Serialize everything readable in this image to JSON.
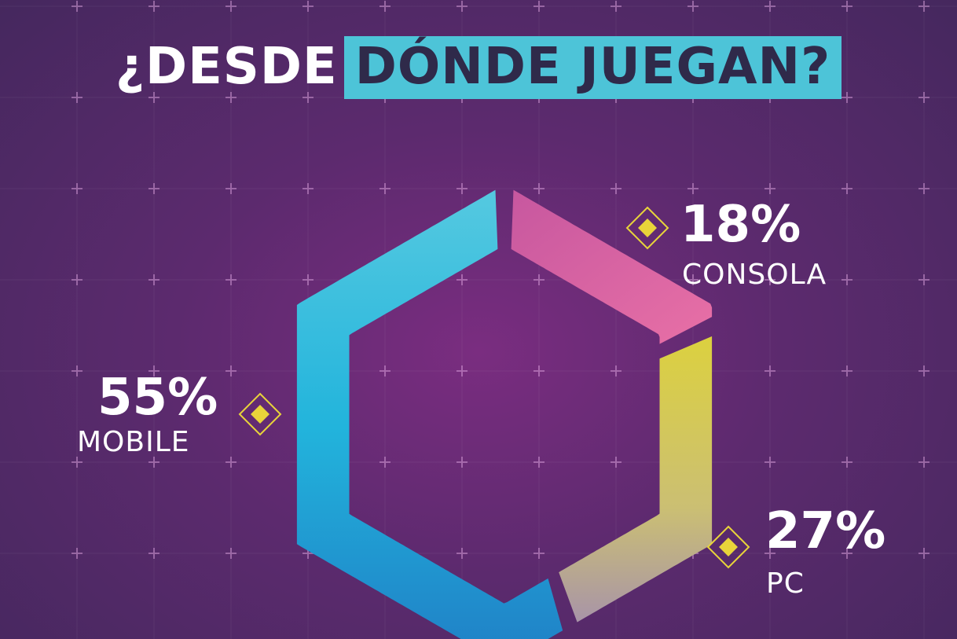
{
  "title": {
    "part1": "¿DESDE",
    "part2": "DÓNDE JUEGAN?"
  },
  "colors": {
    "mobile": "#2bb6dd",
    "consola": "#d6609e",
    "pc": "#d8d04a",
    "marker": "#e8d43a",
    "title_box": "#4dc4d8"
  },
  "chart_data": {
    "type": "pie",
    "shape": "hexagonal donut",
    "categories": [
      "MOBILE",
      "CONSOLA",
      "PC"
    ],
    "values": [
      55,
      18,
      27
    ],
    "value_labels": [
      "55%",
      "18%",
      "27%"
    ],
    "unit": "%"
  }
}
